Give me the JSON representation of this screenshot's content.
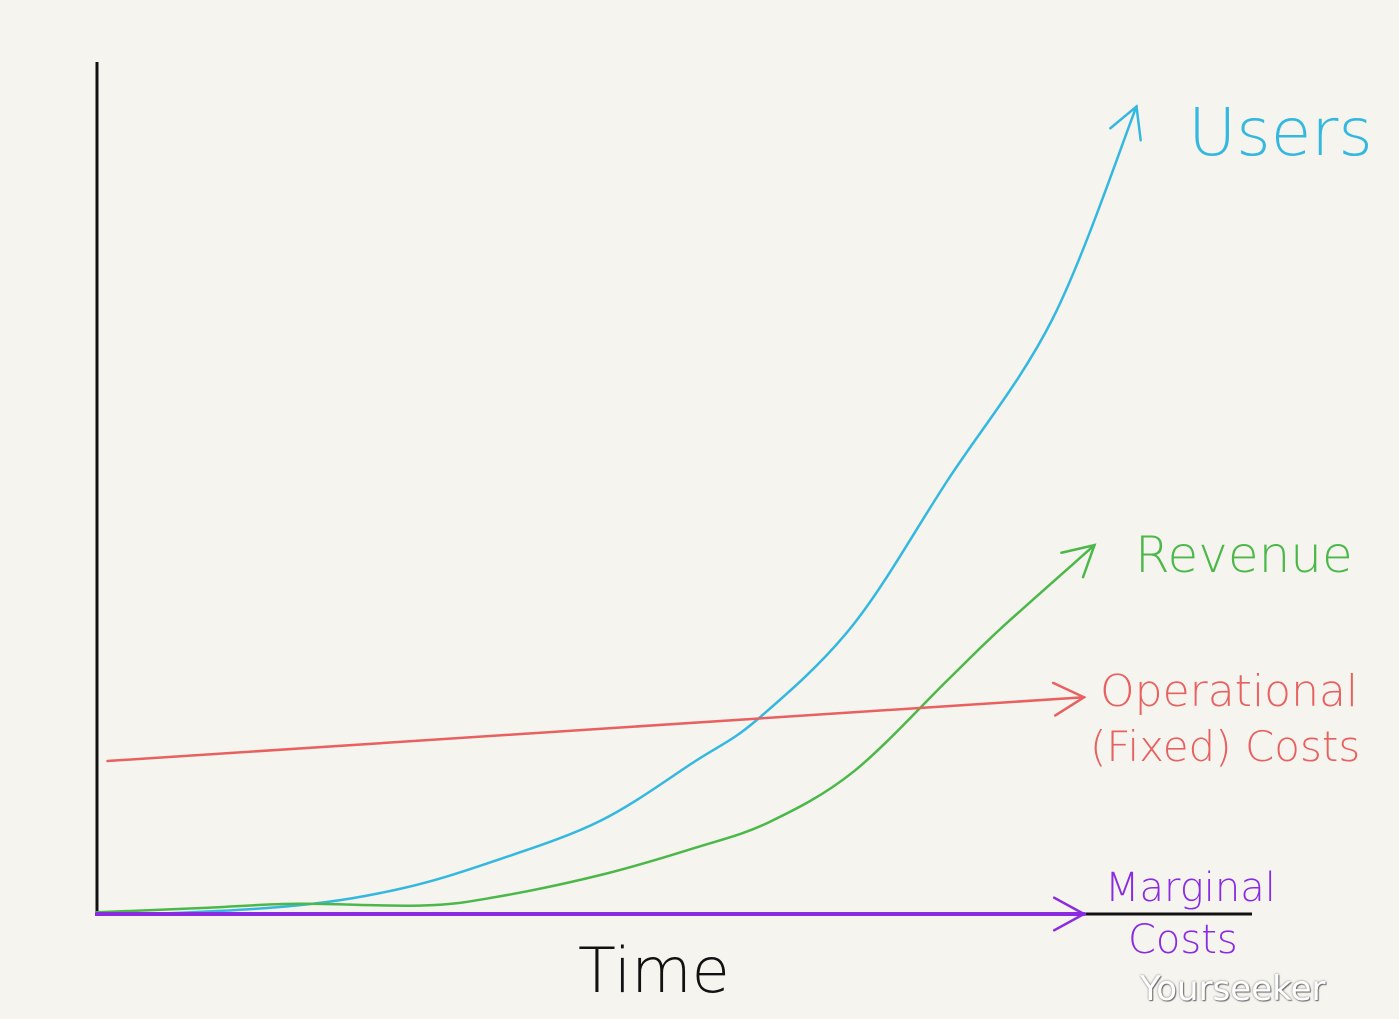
{
  "chart_data": {
    "type": "line",
    "title": "",
    "xlabel": "Time",
    "ylabel": "",
    "xlim": [
      0,
      100
    ],
    "ylim": [
      0,
      100
    ],
    "grid": false,
    "legend": "inline labels at line ends",
    "series": [
      {
        "name": "Users",
        "color": "#35b8e0",
        "x": [
          0,
          5,
          19,
          29,
          38,
          48,
          57,
          63,
          72,
          81,
          91,
          99
        ],
        "y": [
          0.2,
          0,
          1,
          3,
          6.3,
          11,
          18,
          23,
          34,
          51,
          70,
          95
        ]
      },
      {
        "name": "Revenue",
        "color": "#4cb84a",
        "x": [
          0,
          10,
          19,
          31,
          38,
          48,
          57,
          64,
          72,
          81,
          86,
          95
        ],
        "y": [
          0.2,
          0.7,
          1.2,
          1,
          2,
          4.6,
          7.8,
          10.8,
          16.7,
          27.5,
          33.5,
          43.4
        ]
      },
      {
        "name": "Operational (Fixed) Costs",
        "color": "#e8605f",
        "x": [
          1,
          94
        ],
        "y": [
          18,
          25.5
        ]
      },
      {
        "name": "Marginal Costs",
        "color": "#8a2be2",
        "x": [
          0,
          94
        ],
        "y": [
          0,
          0
        ]
      }
    ],
    "labels": {
      "users": "Users",
      "revenue": "Revenue",
      "operational_line1": "Operational",
      "operational_line2": "(Fixed) Costs",
      "marginal_line1": "Marginal",
      "marginal_line2": "Costs"
    },
    "watermark": "Yourseeker"
  }
}
